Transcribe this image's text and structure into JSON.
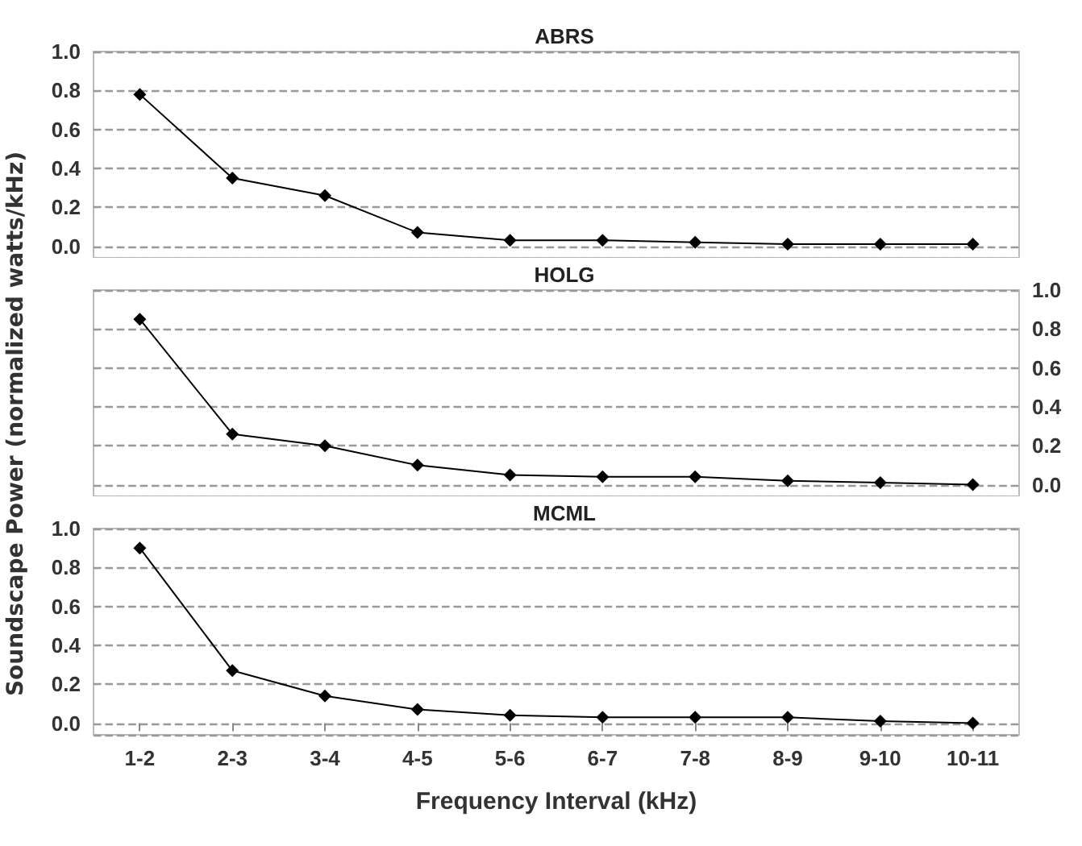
{
  "chart_data": [
    {
      "type": "line",
      "title": "ABRS",
      "categories": [
        null,
        null,
        null,
        null,
        null,
        null,
        null,
        null,
        null,
        null
      ],
      "series": [
        {
          "color": "#000000",
          "values": [
            0.78,
            0.35,
            0.26,
            0.07,
            0.03,
            0.03,
            0.02,
            0.01,
            0.01,
            0.01
          ]
        }
      ],
      "ylim": [
        -0.06,
        1.0
      ],
      "yticks": [
        {
          "value": 0,
          "label": "0.0"
        },
        {
          "value": 0.2,
          "label": "0.2"
        },
        {
          "value": 0.4,
          "label": "0.4"
        },
        {
          "value": 0.6,
          "label": "0.6"
        },
        {
          "value": 0.8,
          "label": "0.8"
        },
        {
          "value": 1,
          "label": "1.0"
        }
      ],
      "grid": "y",
      "marker": "diamond",
      "line_style": "solid",
      "tick_labels": "y"
    },
    {
      "type": "line",
      "title": "HOLG",
      "ylabel": "Soundscape Power (normalized watts/kHz)",
      "categories": [
        null,
        null,
        null,
        null,
        null,
        null,
        null,
        null,
        null,
        null
      ],
      "series": [
        {
          "color": "#000000",
          "values": [
            0.85,
            0.26,
            0.2,
            0.1,
            0.05,
            0.04,
            0.04,
            0.02,
            0.01,
            0.0
          ]
        }
      ],
      "ylim": [
        -0.06,
        1.0
      ],
      "yticks": [
        {
          "value": 0,
          "label": "0.0"
        },
        {
          "value": 0.2,
          "label": "0.2"
        },
        {
          "value": 0.4,
          "label": "0.4"
        },
        {
          "value": 0.6,
          "label": "0.6"
        },
        {
          "value": 0.8,
          "label": "0.8"
        },
        {
          "value": 1,
          "label": "1.0"
        }
      ],
      "grid": "y",
      "marker": "diamond",
      "line_style": "solid",
      "tick_labels": "y"
    },
    {
      "type": "line",
      "title": "MCML",
      "xlabel": "Frequency Interval (kHz)",
      "categories": [
        "1-2",
        "2-3",
        "3-4",
        "4-5",
        "5-6",
        "6-7",
        "7-8",
        "8-9",
        "9-10",
        "10-11"
      ],
      "series": [
        {
          "color": "#000000",
          "values": [
            0.9,
            0.27,
            0.14,
            0.07,
            0.04,
            0.03,
            0.03,
            0.03,
            0.01,
            0.0
          ]
        }
      ],
      "ylim": [
        -0.06,
        1.0
      ],
      "yticks": [
        {
          "value": 0,
          "label": "0.0"
        },
        {
          "value": 0.2,
          "label": "0.2"
        },
        {
          "value": 0.4,
          "label": "0.4"
        },
        {
          "value": 0.6,
          "label": "0.6"
        },
        {
          "value": 0.8,
          "label": "0.8"
        },
        {
          "value": 1,
          "label": "1.0"
        }
      ],
      "grid": "y",
      "marker": "diamond",
      "line_style": "solid"
    }
  ]
}
